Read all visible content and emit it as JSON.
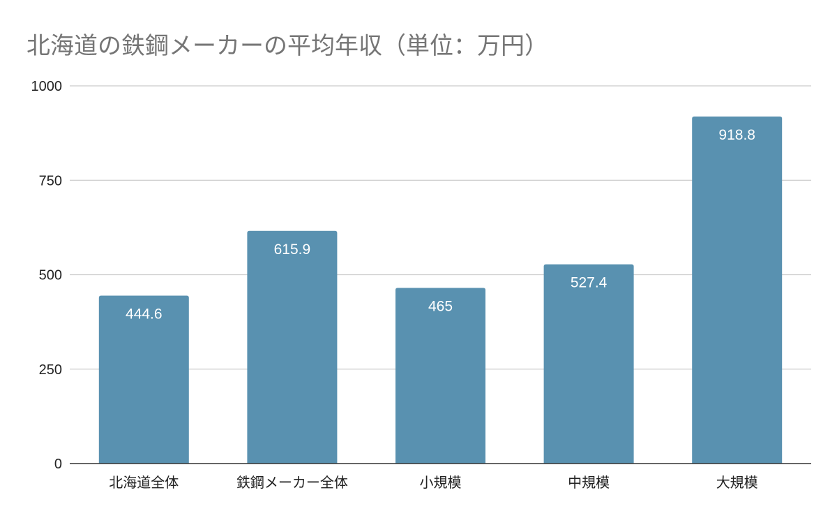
{
  "chart_data": {
    "type": "bar",
    "title": "北海道の鉄鋼メーカーの平均年収（単位：万円）",
    "xlabel": "",
    "ylabel": "",
    "categories": [
      "北海道全体",
      "鉄鋼メーカー全体",
      "小規模",
      "中規模",
      "大規模"
    ],
    "values": [
      444.6,
      615.9,
      465,
      527.4,
      918.8
    ],
    "data_labels": [
      "444.6",
      "615.9",
      "465",
      "527.4",
      "918.8"
    ],
    "ylim": [
      0,
      1000
    ],
    "yticks": [
      0,
      250,
      500,
      750,
      1000
    ],
    "grid": true,
    "legend": "none",
    "bar_color": "#5991b0"
  }
}
